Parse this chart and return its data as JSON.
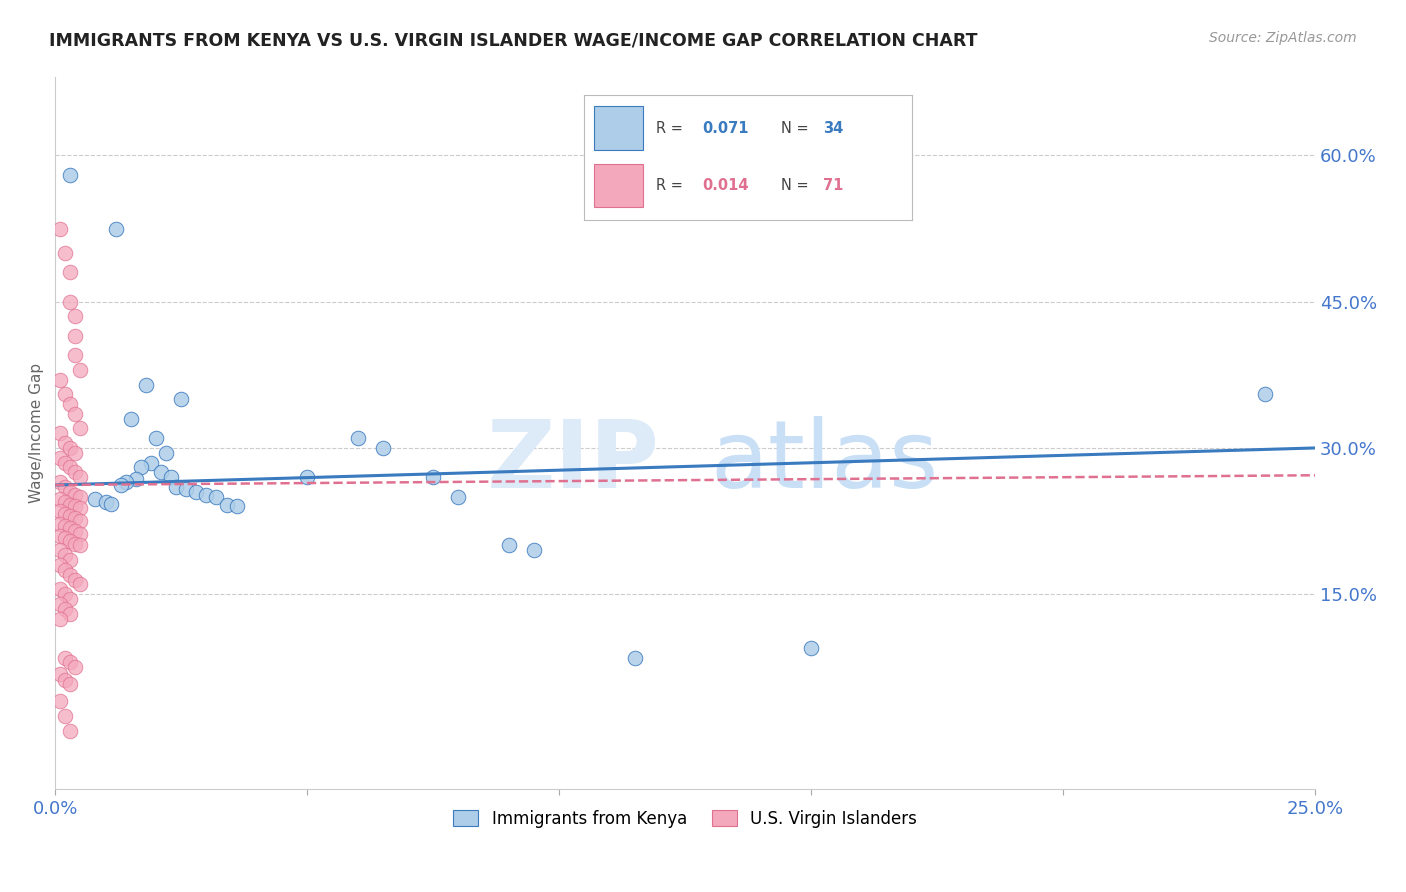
{
  "title": "IMMIGRANTS FROM KENYA VS U.S. VIRGIN ISLANDER WAGE/INCOME GAP CORRELATION CHART",
  "source": "Source: ZipAtlas.com",
  "ylabel": "Wage/Income Gap",
  "xlim": [
    0.0,
    0.25
  ],
  "ylim": [
    -0.05,
    0.68
  ],
  "ytick_vals": [
    0.15,
    0.3,
    0.45,
    0.6
  ],
  "ytick_labels": [
    "15.0%",
    "30.0%",
    "45.0%",
    "60.0%"
  ],
  "xtick_vals": [
    0.0,
    0.05,
    0.1,
    0.15,
    0.2,
    0.25
  ],
  "xtick_labels": [
    "0.0%",
    "",
    "",
    "",
    "",
    "25.0%"
  ],
  "kenya_color": "#aecde8",
  "vi_color": "#f4a8bc",
  "kenya_line_color": "#3a7abf",
  "vi_line_color": "#e07090",
  "legend_r1": "R = 0.071",
  "legend_n1": "N = 34",
  "legend_r2": "R = 0.014",
  "legend_n2": "N = 71",
  "kenya_scatter": [
    [
      0.003,
      0.58
    ],
    [
      0.012,
      0.525
    ],
    [
      0.018,
      0.365
    ],
    [
      0.025,
      0.35
    ],
    [
      0.015,
      0.33
    ],
    [
      0.02,
      0.31
    ],
    [
      0.022,
      0.295
    ],
    [
      0.019,
      0.285
    ],
    [
      0.017,
      0.28
    ],
    [
      0.021,
      0.275
    ],
    [
      0.023,
      0.27
    ],
    [
      0.016,
      0.268
    ],
    [
      0.014,
      0.265
    ],
    [
      0.013,
      0.262
    ],
    [
      0.024,
      0.26
    ],
    [
      0.026,
      0.258
    ],
    [
      0.028,
      0.255
    ],
    [
      0.03,
      0.252
    ],
    [
      0.032,
      0.25
    ],
    [
      0.008,
      0.248
    ],
    [
      0.01,
      0.245
    ],
    [
      0.011,
      0.243
    ],
    [
      0.034,
      0.242
    ],
    [
      0.036,
      0.24
    ],
    [
      0.05,
      0.27
    ],
    [
      0.06,
      0.31
    ],
    [
      0.065,
      0.3
    ],
    [
      0.075,
      0.27
    ],
    [
      0.08,
      0.25
    ],
    [
      0.09,
      0.2
    ],
    [
      0.095,
      0.195
    ],
    [
      0.115,
      0.085
    ],
    [
      0.15,
      0.095
    ],
    [
      0.24,
      0.355
    ]
  ],
  "vi_scatter": [
    [
      0.001,
      0.525
    ],
    [
      0.002,
      0.5
    ],
    [
      0.003,
      0.48
    ],
    [
      0.003,
      0.45
    ],
    [
      0.004,
      0.435
    ],
    [
      0.004,
      0.415
    ],
    [
      0.004,
      0.395
    ],
    [
      0.005,
      0.38
    ],
    [
      0.001,
      0.37
    ],
    [
      0.002,
      0.355
    ],
    [
      0.003,
      0.345
    ],
    [
      0.004,
      0.335
    ],
    [
      0.005,
      0.32
    ],
    [
      0.001,
      0.315
    ],
    [
      0.002,
      0.305
    ],
    [
      0.003,
      0.3
    ],
    [
      0.004,
      0.295
    ],
    [
      0.001,
      0.29
    ],
    [
      0.002,
      0.285
    ],
    [
      0.003,
      0.28
    ],
    [
      0.004,
      0.275
    ],
    [
      0.005,
      0.27
    ],
    [
      0.001,
      0.265
    ],
    [
      0.002,
      0.26
    ],
    [
      0.003,
      0.255
    ],
    [
      0.004,
      0.252
    ],
    [
      0.005,
      0.25
    ],
    [
      0.001,
      0.248
    ],
    [
      0.002,
      0.245
    ],
    [
      0.003,
      0.242
    ],
    [
      0.004,
      0.24
    ],
    [
      0.005,
      0.238
    ],
    [
      0.001,
      0.235
    ],
    [
      0.002,
      0.232
    ],
    [
      0.003,
      0.23
    ],
    [
      0.004,
      0.228
    ],
    [
      0.005,
      0.225
    ],
    [
      0.001,
      0.222
    ],
    [
      0.002,
      0.22
    ],
    [
      0.003,
      0.218
    ],
    [
      0.004,
      0.215
    ],
    [
      0.005,
      0.212
    ],
    [
      0.001,
      0.21
    ],
    [
      0.002,
      0.208
    ],
    [
      0.003,
      0.205
    ],
    [
      0.004,
      0.202
    ],
    [
      0.005,
      0.2
    ],
    [
      0.001,
      0.195
    ],
    [
      0.002,
      0.19
    ],
    [
      0.003,
      0.185
    ],
    [
      0.001,
      0.18
    ],
    [
      0.002,
      0.175
    ],
    [
      0.003,
      0.17
    ],
    [
      0.004,
      0.165
    ],
    [
      0.005,
      0.16
    ],
    [
      0.001,
      0.155
    ],
    [
      0.002,
      0.15
    ],
    [
      0.003,
      0.145
    ],
    [
      0.001,
      0.14
    ],
    [
      0.002,
      0.135
    ],
    [
      0.003,
      0.13
    ],
    [
      0.001,
      0.125
    ],
    [
      0.002,
      0.085
    ],
    [
      0.003,
      0.08
    ],
    [
      0.004,
      0.075
    ],
    [
      0.001,
      0.068
    ],
    [
      0.002,
      0.062
    ],
    [
      0.003,
      0.058
    ],
    [
      0.001,
      0.04
    ],
    [
      0.002,
      0.025
    ],
    [
      0.003,
      0.01
    ]
  ],
  "watermark_zip": "ZIP",
  "watermark_atlas": "atlas",
  "background_color": "#ffffff",
  "grid_color": "#cccccc",
  "title_color": "#222222",
  "tick_label_color": "#4477cc"
}
